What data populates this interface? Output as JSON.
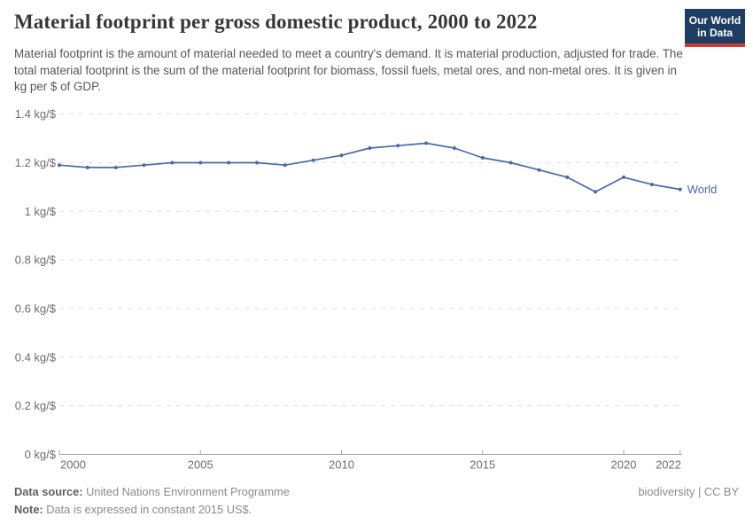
{
  "header": {
    "title": "Material footprint per gross domestic product, 2000 to 2022",
    "subtitle": "Material footprint is the amount of material needed to meet a country's demand. It is material production, adjusted for trade. The total material footprint is the sum of the material footprint for biomass, fossil fuels, metal ores, and non-metal ores. It is given in kg per $ of GDP.",
    "logo": {
      "line1": "Our World",
      "line2": "in Data",
      "bg_color": "#1d3d63",
      "stripe_color": "#cd3b31"
    }
  },
  "chart_data": {
    "type": "line",
    "title": "Material footprint per gross domestic product, 2000 to 2022",
    "xlabel": "",
    "ylabel": "kg per $ of GDP",
    "unit": "kg/$",
    "grid": "horizontal-dashed",
    "legend_position": "end-of-line-label",
    "ylim": [
      0,
      1.4
    ],
    "xlim": [
      2000,
      2022
    ],
    "x": [
      2000,
      2001,
      2002,
      2003,
      2004,
      2005,
      2006,
      2007,
      2008,
      2009,
      2010,
      2011,
      2012,
      2013,
      2014,
      2015,
      2016,
      2017,
      2018,
      2019,
      2020,
      2021,
      2022
    ],
    "series": [
      {
        "name": "World",
        "color": "#4a6aa8",
        "values": [
          1.19,
          1.18,
          1.18,
          1.19,
          1.2,
          1.2,
          1.2,
          1.2,
          1.19,
          1.21,
          1.23,
          1.26,
          1.27,
          1.28,
          1.26,
          1.22,
          1.2,
          1.17,
          1.14,
          1.08,
          1.14,
          1.11,
          1.09
        ]
      }
    ],
    "yticks": [
      {
        "value": 0,
        "label": "0 kg/$"
      },
      {
        "value": 0.2,
        "label": "0.2 kg/$"
      },
      {
        "value": 0.4,
        "label": "0.4 kg/$"
      },
      {
        "value": 0.6,
        "label": "0.6 kg/$"
      },
      {
        "value": 0.8,
        "label": "0.8 kg/$"
      },
      {
        "value": 1,
        "label": "1 kg/$"
      },
      {
        "value": 1.2,
        "label": "1.2 kg/$"
      },
      {
        "value": 1.4,
        "label": "1.4 kg/$"
      }
    ],
    "xticks": [
      {
        "value": 2000,
        "label": "2000"
      },
      {
        "value": 2005,
        "label": "2005"
      },
      {
        "value": 2010,
        "label": "2010"
      },
      {
        "value": 2015,
        "label": "2015"
      },
      {
        "value": 2020,
        "label": "2020"
      },
      {
        "value": 2022,
        "label": "2022"
      }
    ],
    "colors": {
      "gridline": "#dedede",
      "axis": "#a5a5a5",
      "tick_label": "#6d6d6d"
    }
  },
  "footer": {
    "source_label": "Data source:",
    "source_text": "United Nations Environment Programme",
    "note_label": "Note:",
    "note_text": "Data is expressed in constant 2015 US$.",
    "license": "biodiversity | CC BY"
  }
}
